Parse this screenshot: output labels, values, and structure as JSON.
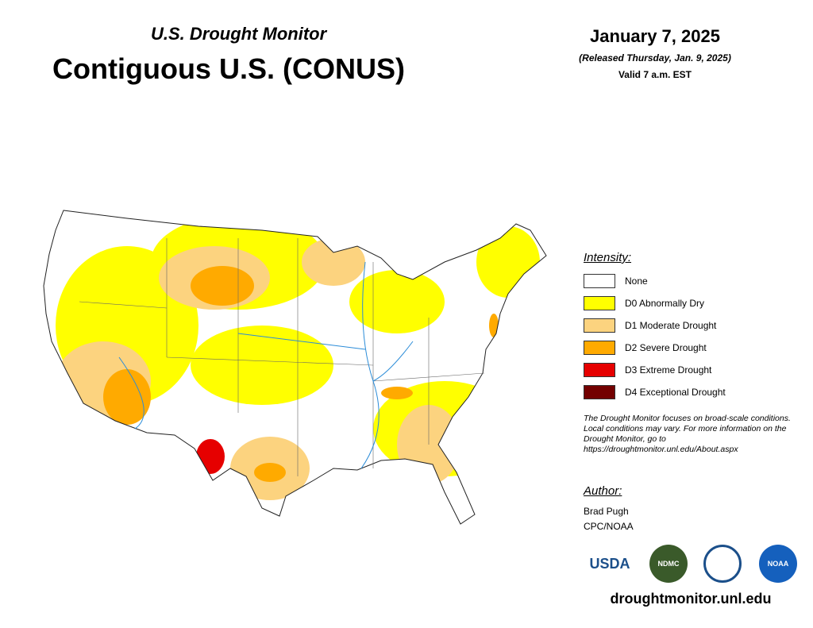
{
  "header": {
    "subtitle": "U.S. Drought Monitor",
    "title": "Contiguous U.S. (CONUS)",
    "date": "January 7, 2025",
    "released": "(Released Thursday, Jan. 9, 2025)",
    "valid": "Valid 7 a.m. EST"
  },
  "legend": {
    "title": "Intensity:",
    "items": [
      {
        "label": "None",
        "color": "#ffffff"
      },
      {
        "label": "D0 Abnormally Dry",
        "color": "#ffff00"
      },
      {
        "label": "D1 Moderate Drought",
        "color": "#fcd37f"
      },
      {
        "label": "D2 Severe Drought",
        "color": "#ffaa00"
      },
      {
        "label": "D3 Extreme Drought",
        "color": "#e60000"
      },
      {
        "label": "D4 Exceptional Drought",
        "color": "#730000"
      }
    ]
  },
  "note": "The Drought Monitor focuses on broad-scale conditions. Local conditions may vary. For more information on the Drought Monitor, go to https://droughtmonitor.unl.edu/About.aspx",
  "author": {
    "title": "Author:",
    "names": [
      "Brad Pugh",
      "CPC/NOAA"
    ]
  },
  "logos": [
    "USDA",
    "NDMC",
    "NOAA"
  ],
  "url": "droughtmonitor.unl.edu"
}
